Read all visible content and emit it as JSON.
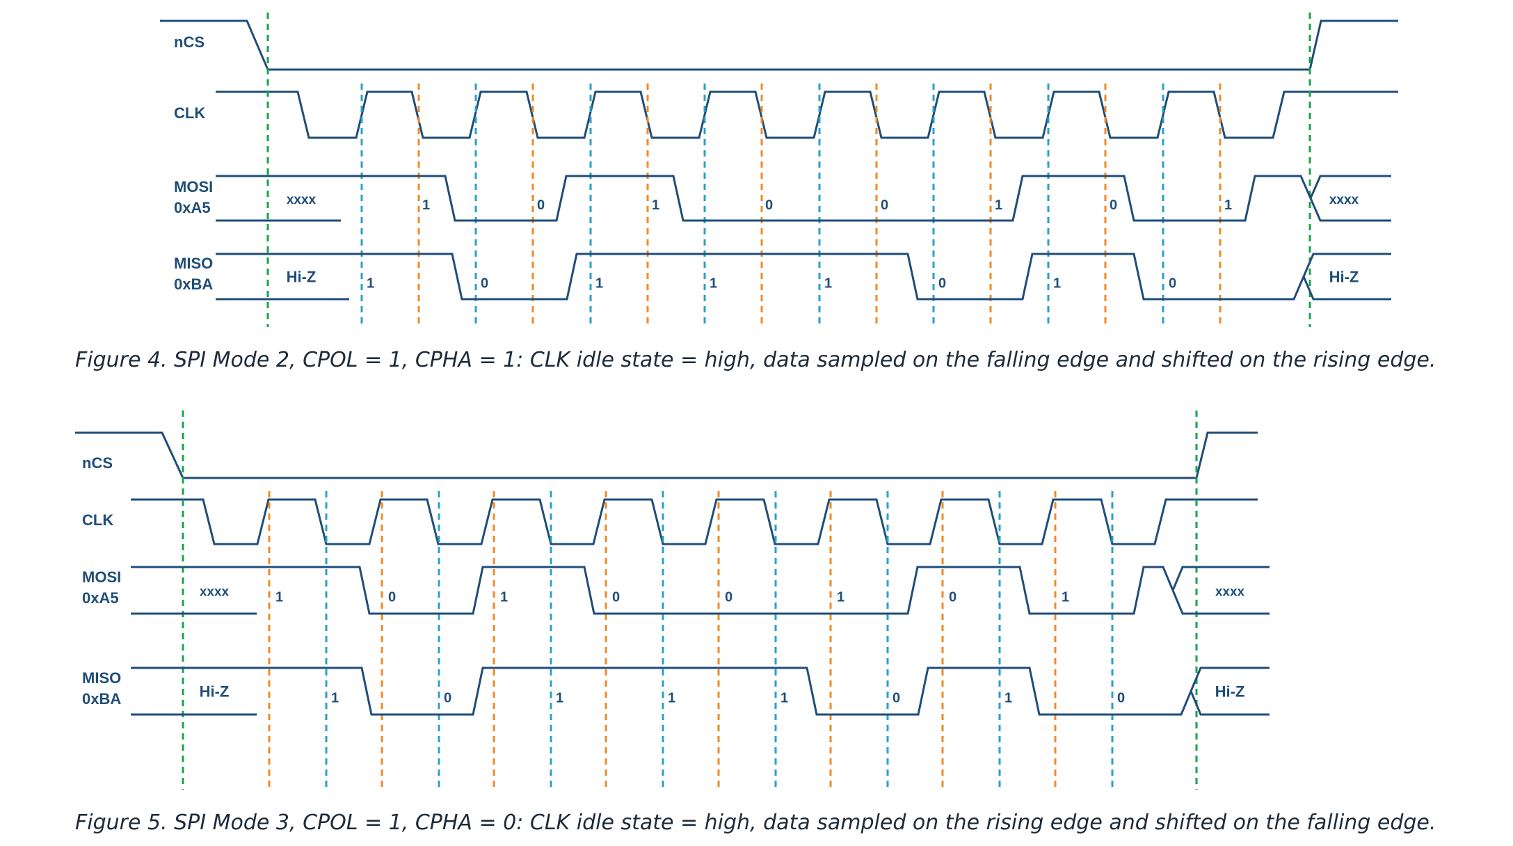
{
  "colors": {
    "wave": "#1f4e79",
    "label": "#1f4e79",
    "cs_marker": "#1aa34a",
    "sample": "#2aa0c8",
    "shift": "#f08a24",
    "caption": "#1d2b3a"
  },
  "signal_labels": {
    "ncs": "nCS",
    "clk": "CLK",
    "mosi": "MOSI",
    "mosi_value": "0xA5",
    "miso": "MISO",
    "miso_value": "0xBA"
  },
  "fill_labels": {
    "unknown": "xxxx",
    "high_z": "Hi-Z"
  },
  "figures": [
    {
      "caption": "Figure 4. SPI Mode 2, CPOL = 1, CPHA = 1: CLK idle state = high, data sampled on the falling edge and shifted on the rising edge.",
      "mosi_bits": [
        "1",
        "0",
        "1",
        "0",
        "0",
        "1",
        "0",
        "1"
      ],
      "miso_bits": [
        "1",
        "0",
        "1",
        "1",
        "1",
        "0",
        "1",
        "0"
      ]
    },
    {
      "caption": "Figure 5. SPI Mode 3, CPOL = 1, CPHA = 0: CLK idle state = high, data sampled on the rising edge and shifted on the falling edge.",
      "mosi_bits": [
        "1",
        "0",
        "1",
        "0",
        "0",
        "1",
        "0",
        "1"
      ],
      "miso_bits": [
        "1",
        "0",
        "1",
        "1",
        "1",
        "0",
        "1",
        "0"
      ]
    }
  ]
}
